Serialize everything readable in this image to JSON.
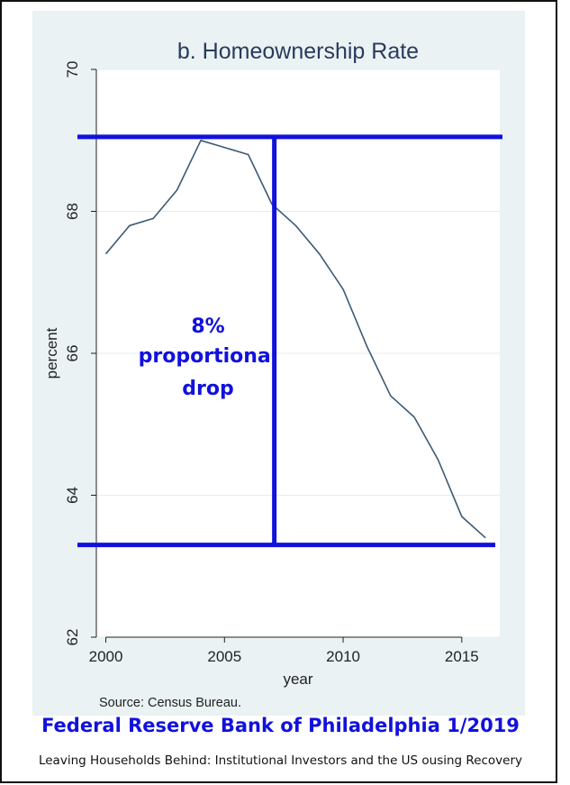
{
  "chart_data": {
    "type": "line",
    "title": "b. Homeownership Rate",
    "xlabel": "year",
    "ylabel": "percent",
    "xlim": [
      1999.6,
      2016.6
    ],
    "ylim": [
      62,
      70
    ],
    "x_ticks": [
      2000,
      2005,
      2010,
      2015
    ],
    "y_ticks": [
      62,
      64,
      66,
      68,
      70
    ],
    "grid": true,
    "x": [
      2000,
      2001,
      2002,
      2003,
      2004,
      2005,
      2006,
      2007,
      2008,
      2009,
      2010,
      2011,
      2012,
      2013,
      2014,
      2015,
      2016
    ],
    "series": [
      {
        "color": "#3d5a73",
        "values": [
          67.4,
          67.8,
          67.9,
          68.3,
          69.0,
          68.9,
          68.8,
          68.1,
          67.8,
          67.4,
          66.9,
          66.1,
          65.4,
          65.1,
          64.5,
          63.7,
          63.4
        ]
      }
    ],
    "annotations": {
      "text_lines": [
        "8%",
        "proportional",
        "drop"
      ],
      "upper_level": 69.05,
      "lower_level": 63.3,
      "marker_year": 2007.1,
      "color": "#1111dd"
    },
    "source": "Source: Census Bureau."
  },
  "caption": {
    "main": "Federal Reserve Bank of Philadelphia 1/2019",
    "sub": "Leaving Households Behind: Institutional Investors and the US ousing Recovery"
  }
}
